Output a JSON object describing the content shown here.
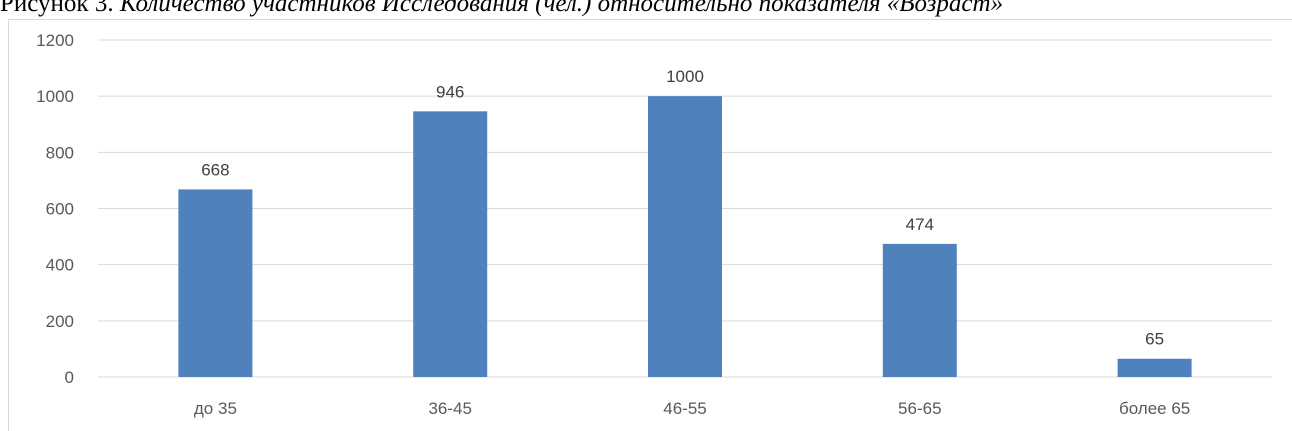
{
  "caption": {
    "label": "Рисунок 3.",
    "text": "Количество участников Исследования (чел.) относительно показателя «Возраст»"
  },
  "chart_data": {
    "type": "bar",
    "title": "",
    "xlabel": "",
    "ylabel": "",
    "categories": [
      "до 35",
      "36-45",
      "46-55",
      "56-65",
      "более 65"
    ],
    "values": [
      668,
      946,
      1000,
      474,
      65
    ],
    "data_labels": [
      "668",
      "946",
      "1000",
      "474",
      "65"
    ],
    "ylim": [
      0,
      1200
    ],
    "yticks": [
      0,
      200,
      400,
      600,
      800,
      1000,
      1200
    ],
    "grid": true,
    "legend": "none",
    "bar_color": "#4f81bd",
    "grid_color": "#d9d9d9"
  }
}
